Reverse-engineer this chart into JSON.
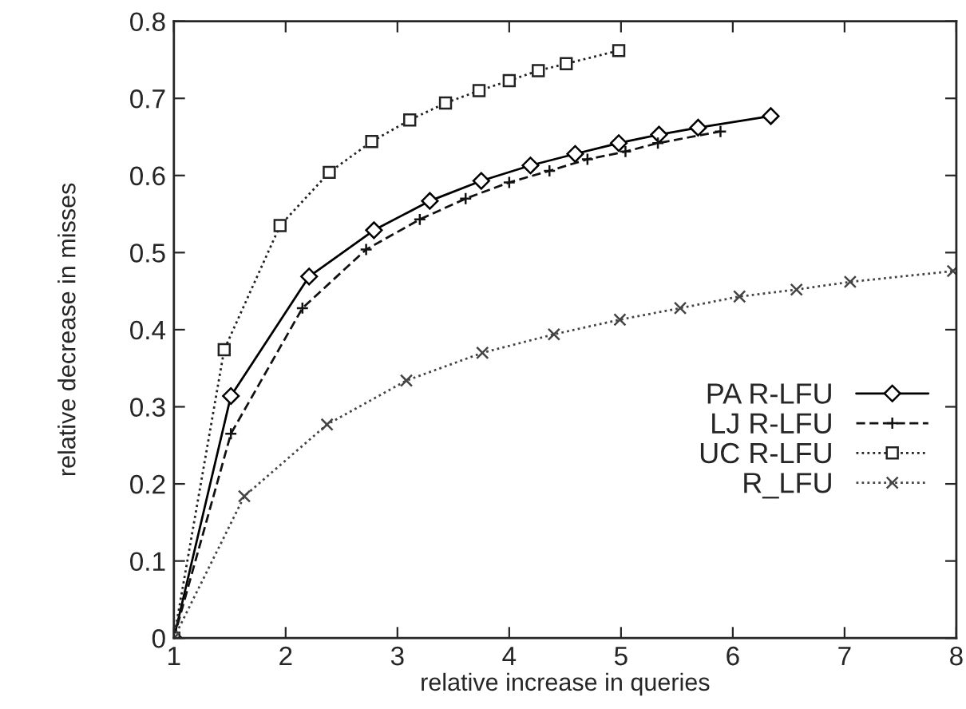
{
  "chart_data": {
    "type": "line",
    "xlabel": "relative increase in queries",
    "ylabel": "relative decrease in misses",
    "xlim": [
      1,
      8
    ],
    "xticks": [
      1,
      2,
      3,
      4,
      5,
      6,
      7,
      8
    ],
    "ylim": [
      0,
      0.8
    ],
    "yticks": [
      0,
      0.1,
      0.2,
      0.3,
      0.4,
      0.5,
      0.6,
      0.7,
      0.8
    ],
    "grid": false,
    "legend": "right",
    "series": [
      {
        "name": "PA R-LFU",
        "color": "#000000",
        "marker": "diamond",
        "line_style": "solid",
        "x": [
          1,
          1.51,
          2.21,
          2.79,
          3.29,
          3.75,
          4.19,
          4.59,
          4.98,
          5.34,
          5.69,
          6.34
        ],
        "values": [
          0,
          0.314,
          0.469,
          0.529,
          0.567,
          0.593,
          0.613,
          0.628,
          0.642,
          0.653,
          0.662,
          0.677
        ]
      },
      {
        "name": "LJ R-LFU",
        "color": "#111111",
        "marker": "cross",
        "line_style": "dashed",
        "x": [
          1,
          1.51,
          2.15,
          2.72,
          3.2,
          3.61,
          4.0,
          4.36,
          4.7,
          5.04,
          5.33,
          5.89
        ],
        "values": [
          0,
          0.265,
          0.428,
          0.504,
          0.543,
          0.57,
          0.591,
          0.606,
          0.621,
          0.631,
          0.642,
          0.657
        ]
      },
      {
        "name": "UC R-LFU",
        "color": "#222222",
        "marker": "square",
        "line_style": "dotted",
        "x": [
          1,
          1.45,
          1.95,
          2.39,
          2.77,
          3.11,
          3.43,
          3.73,
          4.0,
          4.26,
          4.51,
          4.98
        ],
        "values": [
          0,
          0.374,
          0.535,
          0.604,
          0.644,
          0.672,
          0.694,
          0.71,
          0.723,
          0.736,
          0.745,
          0.762
        ]
      },
      {
        "name": "R_LFU",
        "color": "#444444",
        "marker": "cross",
        "line_style": "dotted",
        "x": [
          1,
          1.63,
          2.37,
          3.08,
          3.76,
          4.4,
          4.99,
          5.53,
          6.06,
          6.57,
          7.05,
          7.97
        ],
        "values": [
          0,
          0.184,
          0.277,
          0.334,
          0.37,
          0.394,
          0.413,
          0.428,
          0.443,
          0.452,
          0.462,
          0.476
        ]
      }
    ]
  }
}
